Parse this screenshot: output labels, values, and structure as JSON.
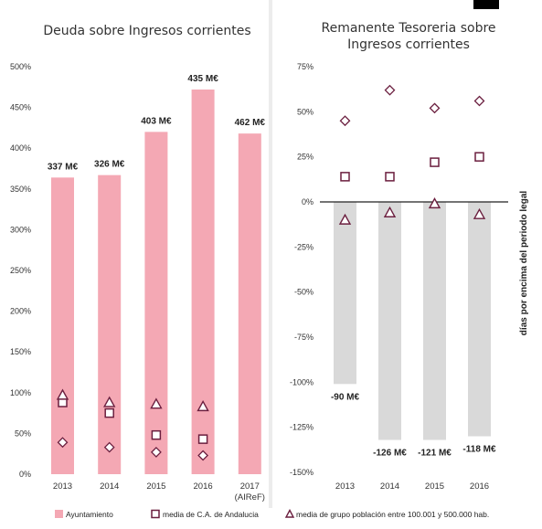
{
  "colors": {
    "ayuntamiento": "#f4a8b4",
    "remanente": "#d9d9d9",
    "marker": "#6b1f3f",
    "zero_line": "#222222"
  },
  "legend": {
    "ayuntamiento": "Ayuntamiento",
    "andalucia": "media de C.A. de Andalucia",
    "grupo": "media de grupo población entre 100.001 y 500.000 hab."
  },
  "chart_data": [
    {
      "type": "bar",
      "title": "Deuda sobre Ingresos corrientes",
      "categories": [
        "2013",
        "2014",
        "2015",
        "2016",
        "2017"
      ],
      "category_sublabels": [
        "",
        "",
        "",
        "",
        "(AIReF)"
      ],
      "ylim": [
        0,
        500
      ],
      "yticks": [
        0,
        50,
        100,
        150,
        200,
        250,
        300,
        350,
        400,
        450,
        500
      ],
      "tick_suffix": "%",
      "grid": false,
      "series": [
        {
          "name": "Ayuntamiento",
          "values": [
            364,
            367,
            420,
            472,
            418
          ],
          "kind": "bar"
        },
        {
          "name": "media de C.A. de Andalucia",
          "values": [
            88,
            75,
            48,
            43,
            null
          ],
          "kind": "square"
        },
        {
          "name": "media de grupo población entre 100.001 y 500.000 hab.",
          "values": [
            97,
            88,
            86,
            83,
            null
          ],
          "kind": "triangle"
        },
        {
          "name": "",
          "values": [
            39,
            33,
            27,
            23,
            null
          ],
          "kind": "diamond"
        }
      ],
      "data_labels": [
        "337 M€",
        "326 M€",
        "403 M€",
        "435 M€",
        "462 M€"
      ]
    },
    {
      "type": "bar",
      "title": "Remanente Tesoreria sobre Ingresos corrientes",
      "categories": [
        "2013",
        "2014",
        "2015",
        "2016"
      ],
      "ylim": [
        -150,
        75
      ],
      "yticks": [
        75,
        50,
        25,
        0,
        -25,
        -50,
        -75,
        -100,
        -125,
        -150
      ],
      "tick_suffix": "%",
      "ylabel": "días por encima del periodo legal",
      "grid": false,
      "series": [
        {
          "name": "Ayuntamiento",
          "values": [
            -101,
            -132,
            -132,
            -130
          ],
          "kind": "bar"
        },
        {
          "name": "media de C.A. de Andalucia",
          "values": [
            14,
            14,
            22,
            25
          ],
          "kind": "square"
        },
        {
          "name": "media de grupo población entre 100.001 y 500.000 hab.",
          "values": [
            -10,
            -6,
            -1,
            -7
          ],
          "kind": "triangle"
        },
        {
          "name": "",
          "values": [
            45,
            62,
            52,
            56
          ],
          "kind": "diamond"
        }
      ],
      "data_labels": [
        "-90 M€",
        "-126 M€",
        "-121 M€",
        "-118 M€"
      ]
    }
  ]
}
